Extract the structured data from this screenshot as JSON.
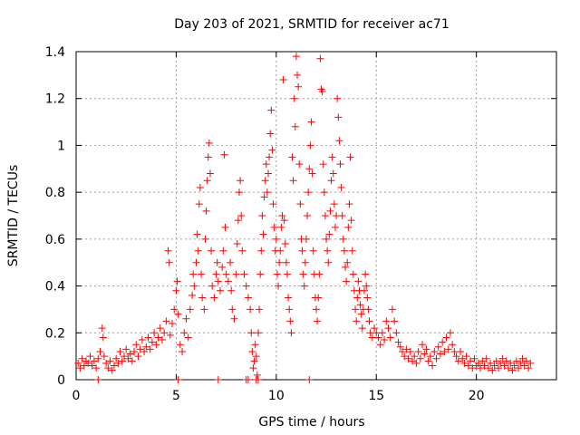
{
  "chart_data": {
    "type": "scatter",
    "title": "Day 203 of 2021, SRMTID for receiver ac71",
    "xlabel": "GPS time / hours",
    "ylabel": "SRMTID / TECUs",
    "xlim": [
      0,
      24
    ],
    "ylim": [
      0,
      1.4
    ],
    "xticks": [
      "0",
      "5",
      "10",
      "15",
      "20"
    ],
    "yticks": [
      "0",
      "0.2",
      "0.4",
      "0.6",
      "0.8",
      "1",
      "1.2",
      "1.4"
    ],
    "grid": true,
    "marker": "plus",
    "color": "#ff0000",
    "series": [
      {
        "name": "SRMTID",
        "points": [
          [
            0.1,
            0.07
          ],
          [
            0.2,
            0.05
          ],
          [
            0.3,
            0.09
          ],
          [
            0.4,
            0.06
          ],
          [
            0.5,
            0.08
          ],
          [
            0.6,
            0.07
          ],
          [
            0.7,
            0.1
          ],
          [
            0.8,
            0.06
          ],
          [
            0.9,
            0.08
          ],
          [
            1.0,
            0.05
          ],
          [
            1.1,
            0.09
          ],
          [
            1.2,
            0.12
          ],
          [
            1.3,
            0.22
          ],
          [
            1.35,
            0.18
          ],
          [
            1.4,
            0.1
          ],
          [
            1.5,
            0.07
          ],
          [
            1.6,
            0.05
          ],
          [
            1.7,
            0.08
          ],
          [
            1.8,
            0.04
          ],
          [
            1.9,
            0.06
          ],
          [
            2.0,
            0.09
          ],
          [
            2.1,
            0.07
          ],
          [
            2.2,
            0.12
          ],
          [
            2.3,
            0.08
          ],
          [
            2.4,
            0.1
          ],
          [
            2.5,
            0.13
          ],
          [
            2.6,
            0.09
          ],
          [
            2.7,
            0.11
          ],
          [
            2.8,
            0.08
          ],
          [
            2.9,
            0.12
          ],
          [
            3.0,
            0.15
          ],
          [
            3.1,
            0.1
          ],
          [
            3.2,
            0.13
          ],
          [
            3.3,
            0.17
          ],
          [
            3.4,
            0.12
          ],
          [
            3.5,
            0.14
          ],
          [
            3.6,
            0.18
          ],
          [
            3.7,
            0.13
          ],
          [
            3.8,
            0.16
          ],
          [
            3.9,
            0.2
          ],
          [
            4.0,
            0.15
          ],
          [
            4.1,
            0.18
          ],
          [
            4.2,
            0.22
          ],
          [
            4.3,
            0.17
          ],
          [
            4.4,
            0.2
          ],
          [
            4.5,
            0.25
          ],
          [
            4.6,
            0.55
          ],
          [
            4.65,
            0.5
          ],
          [
            4.7,
            0.19
          ],
          [
            4.8,
            0.24
          ],
          [
            4.9,
            0.3
          ],
          [
            5.0,
            0.38
          ],
          [
            5.05,
            0.42
          ],
          [
            5.1,
            0.28
          ],
          [
            5.2,
            0.15
          ],
          [
            5.3,
            0.12
          ],
          [
            5.4,
            0.2
          ],
          [
            5.5,
            0.26
          ],
          [
            5.6,
            0.18
          ],
          [
            5.7,
            0.3
          ],
          [
            5.8,
            0.36
          ],
          [
            5.85,
            0.45
          ],
          [
            5.9,
            0.4
          ],
          [
            6.0,
            0.5
          ],
          [
            6.05,
            0.62
          ],
          [
            6.1,
            0.55
          ],
          [
            6.15,
            0.75
          ],
          [
            6.2,
            0.82
          ],
          [
            6.25,
            0.45
          ],
          [
            6.3,
            0.35
          ],
          [
            6.4,
            0.3
          ],
          [
            6.45,
            0.6
          ],
          [
            6.5,
            0.72
          ],
          [
            6.55,
            0.85
          ],
          [
            6.6,
            0.95
          ],
          [
            6.65,
            1.01
          ],
          [
            6.7,
            0.88
          ],
          [
            6.75,
            0.55
          ],
          [
            6.8,
            0.4
          ],
          [
            6.9,
            0.35
          ],
          [
            7.0,
            0.45
          ],
          [
            7.05,
            0.5
          ],
          [
            7.1,
            0.42
          ],
          [
            7.2,
            0.38
          ],
          [
            7.3,
            0.48
          ],
          [
            7.35,
            0.55
          ],
          [
            7.4,
            0.96
          ],
          [
            7.45,
            0.65
          ],
          [
            7.5,
            0.45
          ],
          [
            7.6,
            0.42
          ],
          [
            7.7,
            0.5
          ],
          [
            7.75,
            0.38
          ],
          [
            7.8,
            0.3
          ],
          [
            7.9,
            0.26
          ],
          [
            8.0,
            0.45
          ],
          [
            8.05,
            0.58
          ],
          [
            8.1,
            0.68
          ],
          [
            8.15,
            0.8
          ],
          [
            8.2,
            0.85
          ],
          [
            8.25,
            0.7
          ],
          [
            8.3,
            0.55
          ],
          [
            8.4,
            0.45
          ],
          [
            8.5,
            0.4
          ],
          [
            8.6,
            0.35
          ],
          [
            8.7,
            0.3
          ],
          [
            8.75,
            0.2
          ],
          [
            8.8,
            0.12
          ],
          [
            8.85,
            0.05
          ],
          [
            8.9,
            0.08
          ],
          [
            8.95,
            0.15
          ],
          [
            9.0,
            0.1
          ],
          [
            9.05,
            0.02
          ],
          [
            9.1,
            0.2
          ],
          [
            9.15,
            0.3
          ],
          [
            9.2,
            0.45
          ],
          [
            9.25,
            0.55
          ],
          [
            9.3,
            0.7
          ],
          [
            9.35,
            0.62
          ],
          [
            9.4,
            0.78
          ],
          [
            9.45,
            0.85
          ],
          [
            9.5,
            0.92
          ],
          [
            9.55,
            0.8
          ],
          [
            9.6,
            0.88
          ],
          [
            9.65,
            0.95
          ],
          [
            9.7,
            1.05
          ],
          [
            9.75,
            1.15
          ],
          [
            9.8,
            0.98
          ],
          [
            9.85,
            0.75
          ],
          [
            9.9,
            0.65
          ],
          [
            9.95,
            0.55
          ],
          [
            10.0,
            0.6
          ],
          [
            10.05,
            0.45
          ],
          [
            10.1,
            0.4
          ],
          [
            10.15,
            0.5
          ],
          [
            10.2,
            0.55
          ],
          [
            10.25,
            0.65
          ],
          [
            10.3,
            0.7
          ],
          [
            10.35,
            1.28
          ],
          [
            10.4,
            0.68
          ],
          [
            10.45,
            0.58
          ],
          [
            10.5,
            0.5
          ],
          [
            10.55,
            0.45
          ],
          [
            10.6,
            0.35
          ],
          [
            10.65,
            0.3
          ],
          [
            10.7,
            0.25
          ],
          [
            10.75,
            0.2
          ],
          [
            10.8,
            0.95
          ],
          [
            10.85,
            0.85
          ],
          [
            10.9,
            1.2
          ],
          [
            10.95,
            1.08
          ],
          [
            11.0,
            1.38
          ],
          [
            11.05,
            1.3
          ],
          [
            11.1,
            1.25
          ],
          [
            11.15,
            0.92
          ],
          [
            11.2,
            0.75
          ],
          [
            11.25,
            0.6
          ],
          [
            11.3,
            0.55
          ],
          [
            11.35,
            0.45
          ],
          [
            11.4,
            0.4
          ],
          [
            11.45,
            0.5
          ],
          [
            11.5,
            0.6
          ],
          [
            11.55,
            0.7
          ],
          [
            11.6,
            0.8
          ],
          [
            11.65,
            0.9
          ],
          [
            11.7,
            1.0
          ],
          [
            11.75,
            1.1
          ],
          [
            11.8,
            0.88
          ],
          [
            11.85,
            0.55
          ],
          [
            11.9,
            0.45
          ],
          [
            11.95,
            0.35
          ],
          [
            12.0,
            0.3
          ],
          [
            12.05,
            0.25
          ],
          [
            12.1,
            0.35
          ],
          [
            12.15,
            0.45
          ],
          [
            12.2,
            1.37
          ],
          [
            12.25,
            1.24
          ],
          [
            12.3,
            1.23
          ],
          [
            12.35,
            0.92
          ],
          [
            12.4,
            0.8
          ],
          [
            12.45,
            0.7
          ],
          [
            12.5,
            0.6
          ],
          [
            12.55,
            0.55
          ],
          [
            12.6,
            0.5
          ],
          [
            12.65,
            0.62
          ],
          [
            12.7,
            0.72
          ],
          [
            12.75,
            0.85
          ],
          [
            12.8,
            0.95
          ],
          [
            12.85,
            0.88
          ],
          [
            12.9,
            0.75
          ],
          [
            12.95,
            0.65
          ],
          [
            13.0,
            0.7
          ],
          [
            13.05,
            1.2
          ],
          [
            13.1,
            1.12
          ],
          [
            13.15,
            1.02
          ],
          [
            13.2,
            0.92
          ],
          [
            13.25,
            0.82
          ],
          [
            13.3,
            0.7
          ],
          [
            13.35,
            0.6
          ],
          [
            13.4,
            0.55
          ],
          [
            13.45,
            0.48
          ],
          [
            13.5,
            0.42
          ],
          [
            13.55,
            0.5
          ],
          [
            13.6,
            0.65
          ],
          [
            13.65,
            0.75
          ],
          [
            13.7,
            0.95
          ],
          [
            13.75,
            0.68
          ],
          [
            13.8,
            0.55
          ],
          [
            13.85,
            0.45
          ],
          [
            13.9,
            0.38
          ],
          [
            13.95,
            0.3
          ],
          [
            14.0,
            0.25
          ],
          [
            14.05,
            0.35
          ],
          [
            14.1,
            0.42
          ],
          [
            14.15,
            0.38
          ],
          [
            14.2,
            0.32
          ],
          [
            14.25,
            0.28
          ],
          [
            14.3,
            0.22
          ],
          [
            14.35,
            0.3
          ],
          [
            14.4,
            0.38
          ],
          [
            14.45,
            0.45
          ],
          [
            14.5,
            0.4
          ],
          [
            14.55,
            0.35
          ],
          [
            14.6,
            0.3
          ],
          [
            14.65,
            0.25
          ],
          [
            14.7,
            0.2
          ],
          [
            14.8,
            0.18
          ],
          [
            14.9,
            0.22
          ],
          [
            15.0,
            0.2
          ],
          [
            15.1,
            0.18
          ],
          [
            15.2,
            0.15
          ],
          [
            15.3,
            0.2
          ],
          [
            15.4,
            0.17
          ],
          [
            15.5,
            0.25
          ],
          [
            15.6,
            0.22
          ],
          [
            15.7,
            0.18
          ],
          [
            15.8,
            0.3
          ],
          [
            15.9,
            0.25
          ],
          [
            16.0,
            0.2
          ],
          [
            16.1,
            0.16
          ],
          [
            16.2,
            0.14
          ],
          [
            16.3,
            0.12
          ],
          [
            16.4,
            0.1
          ],
          [
            16.5,
            0.13
          ],
          [
            16.6,
            0.09
          ],
          [
            16.7,
            0.12
          ],
          [
            16.8,
            0.08
          ],
          [
            16.9,
            0.1
          ],
          [
            17.0,
            0.07
          ],
          [
            17.1,
            0.12
          ],
          [
            17.2,
            0.09
          ],
          [
            17.3,
            0.15
          ],
          [
            17.4,
            0.11
          ],
          [
            17.5,
            0.13
          ],
          [
            17.6,
            0.08
          ],
          [
            17.7,
            0.1
          ],
          [
            17.8,
            0.06
          ],
          [
            17.9,
            0.12
          ],
          [
            18.0,
            0.09
          ],
          [
            18.1,
            0.14
          ],
          [
            18.2,
            0.11
          ],
          [
            18.3,
            0.16
          ],
          [
            18.4,
            0.12
          ],
          [
            18.5,
            0.18
          ],
          [
            18.6,
            0.13
          ],
          [
            18.7,
            0.2
          ],
          [
            18.8,
            0.15
          ],
          [
            18.9,
            0.12
          ],
          [
            19.0,
            0.1
          ],
          [
            19.1,
            0.08
          ],
          [
            19.2,
            0.12
          ],
          [
            19.3,
            0.09
          ],
          [
            19.4,
            0.07
          ],
          [
            19.5,
            0.1
          ],
          [
            19.6,
            0.06
          ],
          [
            19.7,
            0.08
          ],
          [
            19.8,
            0.05
          ],
          [
            19.9,
            0.09
          ],
          [
            20.0,
            0.06
          ],
          [
            20.1,
            0.07
          ],
          [
            20.2,
            0.05
          ],
          [
            20.3,
            0.08
          ],
          [
            20.4,
            0.06
          ],
          [
            20.5,
            0.09
          ],
          [
            20.6,
            0.05
          ],
          [
            20.7,
            0.07
          ],
          [
            20.8,
            0.04
          ],
          [
            20.9,
            0.06
          ],
          [
            21.0,
            0.08
          ],
          [
            21.1,
            0.05
          ],
          [
            21.2,
            0.07
          ],
          [
            21.3,
            0.09
          ],
          [
            21.4,
            0.06
          ],
          [
            21.5,
            0.08
          ],
          [
            21.6,
            0.05
          ],
          [
            21.7,
            0.07
          ],
          [
            21.8,
            0.04
          ],
          [
            21.9,
            0.06
          ],
          [
            22.0,
            0.08
          ],
          [
            22.1,
            0.05
          ],
          [
            22.2,
            0.07
          ],
          [
            22.3,
            0.09
          ],
          [
            22.4,
            0.06
          ],
          [
            22.5,
            0.08
          ],
          [
            22.6,
            0.05
          ],
          [
            22.7,
            0.07
          ],
          [
            1.1,
            0.0
          ],
          [
            5.1,
            0.0
          ],
          [
            7.1,
            0.0
          ],
          [
            8.5,
            0.0
          ],
          [
            8.6,
            0.0
          ],
          [
            9.0,
            0.0
          ],
          [
            9.1,
            0.0
          ],
          [
            11.65,
            0.0
          ]
        ]
      }
    ]
  }
}
